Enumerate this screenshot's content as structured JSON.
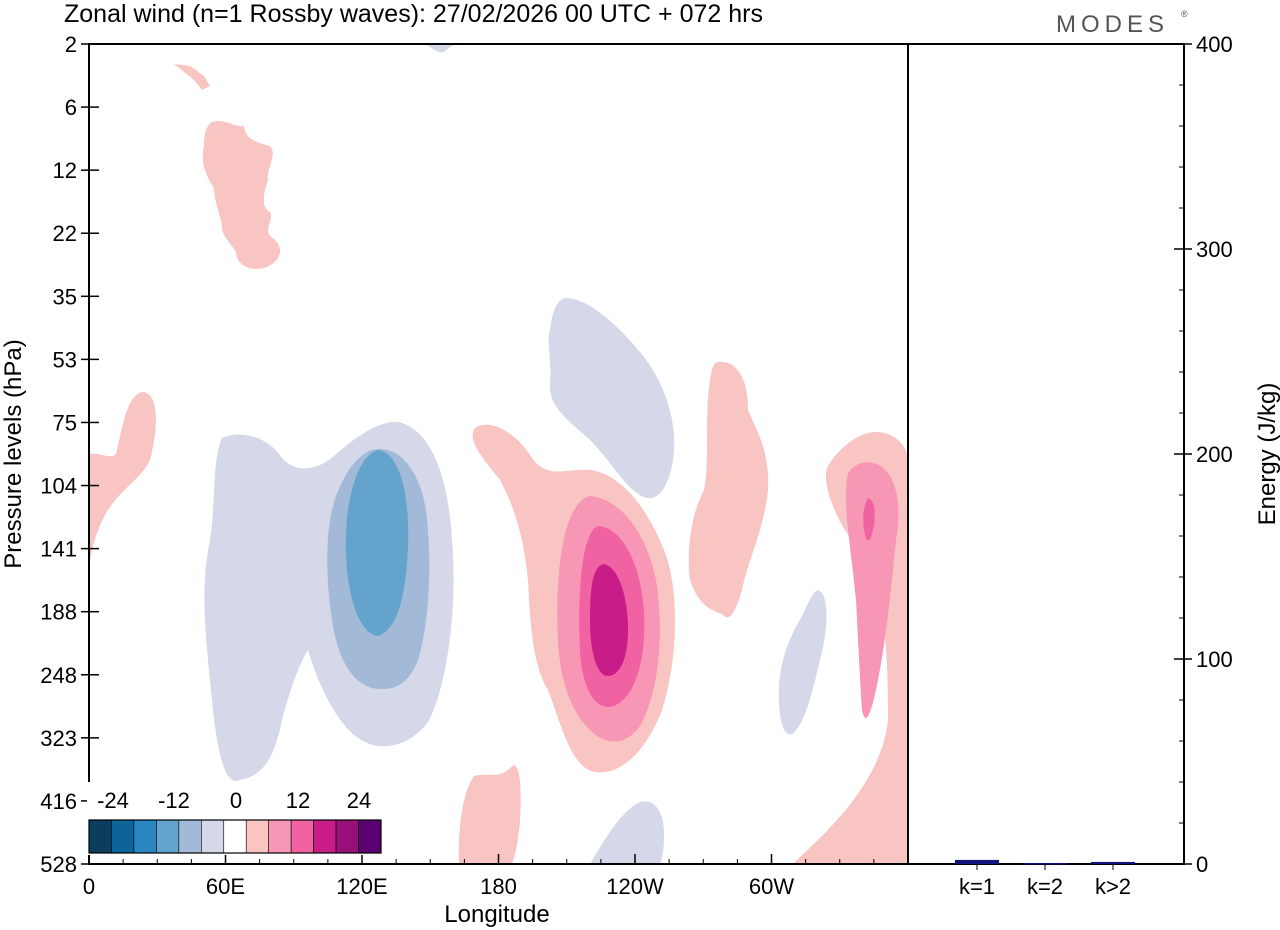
{
  "chart_data": [
    {
      "type": "contour",
      "title": "Zonal wind (n=1 Rossby waves):  27/02/2026  00 UTC  + 072 hrs",
      "xlabel": "Longitude",
      "ylabel": "Pressure levels (hPa)",
      "x_ticks": [
        "0",
        "60E",
        "120E",
        "180",
        "120W",
        "60W"
      ],
      "x_tick_degrees": [
        0,
        60,
        120,
        180,
        240,
        300
      ],
      "x_range_degrees": [
        0,
        360
      ],
      "y_ticks": [
        "2",
        "6",
        "12",
        "22",
        "35",
        "53",
        "75",
        "104",
        "141",
        "188",
        "248",
        "323",
        "416",
        "528"
      ],
      "y_axis": "pressure levels, top to bottom",
      "colorbar": {
        "tick_labels": [
          "-24",
          "-12",
          "0",
          "12",
          "24"
        ],
        "colors": [
          "#0d3d5e",
          "#0d6498",
          "#2a86c0",
          "#63a3cc",
          "#a2b9d8",
          "#d4d8e8",
          "#ffffff",
          "#f8c5c2",
          "#f796b5",
          "#f062a2",
          "#c81c89",
          "#961078",
          "#5a0070"
        ]
      },
      "features": [
        {
          "name": "easterly-region",
          "sign": "negative",
          "lon_range": [
            50,
            152
          ],
          "level_range": [
            "75",
            "416"
          ],
          "min_value": -12
        },
        {
          "name": "westerly-region",
          "sign": "positive",
          "lon_range": [
            168,
            257
          ],
          "level_range": [
            "75",
            "416"
          ],
          "max_value": 21
        },
        {
          "name": "westerly-region-east",
          "sign": "positive",
          "lon_range": [
            325,
            360
          ],
          "level_range": [
            "75",
            "416"
          ],
          "max_value": 18
        }
      ]
    },
    {
      "type": "bar",
      "xlabel": "",
      "ylabel": "Energy (J/kg)",
      "categories": [
        "k=1",
        "k=2",
        "k>2"
      ],
      "values": [
        2,
        0.5,
        1
      ],
      "ylim": [
        0,
        400
      ],
      "y_ticks": [
        "0",
        "100",
        "200",
        "300",
        "400"
      ],
      "bar_color": "#12127a"
    }
  ],
  "brand": "MODES",
  "brand_mark": "®"
}
